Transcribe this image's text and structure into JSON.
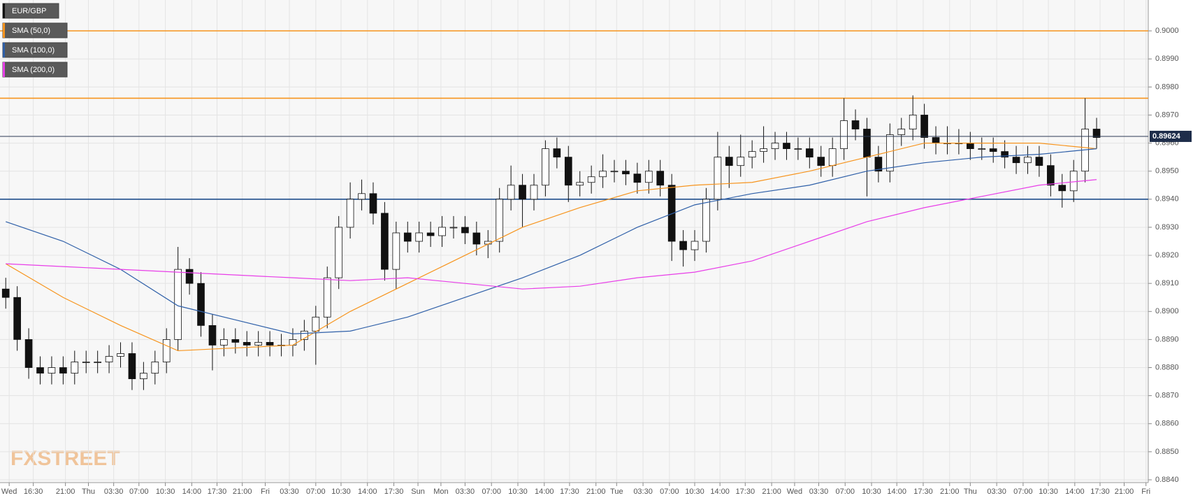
{
  "logo": "FXSTREET",
  "chart_data": {
    "type": "candlestick",
    "name": "EUR/GBP",
    "x": [
      0.5,
      1.5,
      2.5,
      3.5,
      4.5,
      5.5,
      6.5,
      7.5,
      8.5,
      9.5,
      10.5,
      11.5,
      12.5,
      13.5,
      14.5,
      15.5,
      16.5,
      17.5,
      18.5,
      19.5,
      20.5,
      21.5,
      22.5,
      23.5,
      24.5,
      25.5,
      26.5,
      27.5,
      28.5,
      29.5,
      30.5,
      31.5,
      32.5,
      33.5,
      34.5,
      35.5,
      36.5,
      37.5,
      38.5,
      39.5,
      40.5,
      41.5,
      42.5,
      43.5,
      44.5,
      45.5,
      46.5,
      47.5,
      48.5,
      49.5,
      50.5,
      51.5,
      52.5,
      53.5,
      54.5,
      55.5,
      56.5,
      57.5,
      58.5,
      59.5,
      60.5,
      61.5,
      62.5,
      63.5,
      64.5,
      65.5,
      66.5,
      67.5,
      68.5,
      69.5,
      70.5,
      71.5,
      72.5,
      73.5,
      74.5,
      75.5,
      76.5,
      77.5,
      78.5,
      79.5,
      80.5,
      81.5,
      82.5,
      83.5,
      84.5,
      85.5,
      86.5,
      87.5,
      88.5,
      89.5,
      90.5,
      91.5,
      92.5,
      93.5,
      94.5,
      95.5
    ],
    "open": [
      0.8908,
      0.8905,
      0.889,
      0.888,
      0.8878,
      0.888,
      0.8878,
      0.8882,
      0.8882,
      0.8882,
      0.8884,
      0.8885,
      0.8876,
      0.8878,
      0.8882,
      0.889,
      0.8915,
      0.891,
      0.8895,
      0.8888,
      0.889,
      0.8889,
      0.8888,
      0.8889,
      0.8888,
      0.8888,
      0.889,
      0.8893,
      0.8898,
      0.8912,
      0.893,
      0.894,
      0.8942,
      0.8935,
      0.8915,
      0.8928,
      0.8925,
      0.8928,
      0.8927,
      0.893,
      0.893,
      0.8928,
      0.8924,
      0.8925,
      0.894,
      0.8945,
      0.894,
      0.8945,
      0.8958,
      0.8955,
      0.8945,
      0.8946,
      0.8948,
      0.895,
      0.895,
      0.8949,
      0.8946,
      0.895,
      0.8945,
      0.8925,
      0.8922,
      0.8925,
      0.894,
      0.8955,
      0.8952,
      0.8955,
      0.8957,
      0.8958,
      0.896,
      0.8958,
      0.8958,
      0.8955,
      0.8952,
      0.8958,
      0.8968,
      0.8965,
      0.8955,
      0.895,
      0.8963,
      0.8965,
      0.897,
      0.8962,
      0.896,
      0.896,
      0.896,
      0.8958,
      0.8958,
      0.8957,
      0.8955,
      0.8953,
      0.8955,
      0.8952,
      0.8945,
      0.8943,
      0.895,
      0.8965
    ],
    "high": [
      0.8912,
      0.8909,
      0.8894,
      0.8884,
      0.8884,
      0.8884,
      0.8886,
      0.8886,
      0.8886,
      0.8888,
      0.8889,
      0.8889,
      0.8882,
      0.8886,
      0.8894,
      0.8923,
      0.8919,
      0.8914,
      0.8899,
      0.8894,
      0.8894,
      0.8893,
      0.8893,
      0.8893,
      0.8892,
      0.8894,
      0.8897,
      0.8902,
      0.8916,
      0.8934,
      0.8946,
      0.8947,
      0.8946,
      0.8939,
      0.8932,
      0.8932,
      0.8932,
      0.8932,
      0.8934,
      0.8934,
      0.8934,
      0.8932,
      0.8929,
      0.8944,
      0.8952,
      0.8949,
      0.8949,
      0.8961,
      0.8962,
      0.8959,
      0.895,
      0.8952,
      0.8956,
      0.8954,
      0.8954,
      0.8953,
      0.8954,
      0.8954,
      0.8949,
      0.8929,
      0.8929,
      0.8944,
      0.8964,
      0.8959,
      0.8963,
      0.8961,
      0.8966,
      0.8964,
      0.8964,
      0.8962,
      0.8962,
      0.8959,
      0.8962,
      0.8976,
      0.8972,
      0.8969,
      0.8959,
      0.8967,
      0.8969,
      0.8977,
      0.8974,
      0.8966,
      0.8966,
      0.8965,
      0.8964,
      0.8962,
      0.8962,
      0.8961,
      0.8959,
      0.8959,
      0.8959,
      0.8956,
      0.8949,
      0.8954,
      0.8976,
      0.8969
    ],
    "low": [
      0.8901,
      0.8886,
      0.8876,
      0.8874,
      0.8874,
      0.8874,
      0.8874,
      0.8878,
      0.8878,
      0.8878,
      0.888,
      0.8872,
      0.8872,
      0.8874,
      0.8878,
      0.8886,
      0.8906,
      0.8891,
      0.8879,
      0.8884,
      0.8885,
      0.8884,
      0.8884,
      0.8884,
      0.8884,
      0.8884,
      0.8886,
      0.8881,
      0.8894,
      0.8908,
      0.8926,
      0.8936,
      0.8931,
      0.8911,
      0.8908,
      0.8921,
      0.8921,
      0.8923,
      0.8923,
      0.8926,
      0.8924,
      0.892,
      0.8919,
      0.8921,
      0.8936,
      0.893,
      0.8936,
      0.8941,
      0.8951,
      0.8939,
      0.8941,
      0.8942,
      0.8944,
      0.8946,
      0.8945,
      0.8942,
      0.8942,
      0.8941,
      0.8918,
      0.8916,
      0.8918,
      0.8921,
      0.8936,
      0.8944,
      0.8948,
      0.8951,
      0.8953,
      0.8954,
      0.8954,
      0.8954,
      0.8951,
      0.8948,
      0.8948,
      0.8954,
      0.8961,
      0.8941,
      0.8946,
      0.8946,
      0.8959,
      0.8961,
      0.8958,
      0.8956,
      0.8956,
      0.8956,
      0.8954,
      0.8954,
      0.8953,
      0.8951,
      0.8949,
      0.8949,
      0.8948,
      0.8941,
      0.8937,
      0.8939,
      0.8946,
      0.8958
    ],
    "close": [
      0.8905,
      0.889,
      0.888,
      0.8878,
      0.888,
      0.8878,
      0.8882,
      0.8882,
      0.8882,
      0.8884,
      0.8885,
      0.8876,
      0.8878,
      0.8882,
      0.889,
      0.8915,
      0.891,
      0.8895,
      0.8888,
      0.889,
      0.8889,
      0.8888,
      0.8889,
      0.8888,
      0.8888,
      0.889,
      0.8893,
      0.8898,
      0.8912,
      0.893,
      0.894,
      0.8942,
      0.8935,
      0.8915,
      0.8928,
      0.8925,
      0.8928,
      0.8927,
      0.893,
      0.893,
      0.8928,
      0.8924,
      0.8925,
      0.894,
      0.8945,
      0.894,
      0.8945,
      0.8958,
      0.8955,
      0.8945,
      0.8946,
      0.8948,
      0.895,
      0.895,
      0.8949,
      0.8946,
      0.895,
      0.8945,
      0.8925,
      0.8922,
      0.8925,
      0.894,
      0.8955,
      0.8952,
      0.8955,
      0.8957,
      0.8958,
      0.896,
      0.8958,
      0.8958,
      0.8955,
      0.8952,
      0.8958,
      0.8968,
      0.8965,
      0.8955,
      0.895,
      0.8963,
      0.8965,
      0.897,
      0.8962,
      0.896,
      0.896,
      0.896,
      0.8958,
      0.8958,
      0.8957,
      0.8955,
      0.8953,
      0.8955,
      0.8952,
      0.8945,
      0.8943,
      0.895,
      0.8965,
      0.8962
    ],
    "series": [
      {
        "name": "SMA (50,0)",
        "color": "#f7941d",
        "x": [
          0.5,
          5.5,
          10.5,
          15.5,
          20.5,
          25.5,
          30.5,
          35.5,
          40.5,
          45.5,
          50.5,
          55.5,
          60.5,
          65.5,
          70.5,
          75.5,
          80.5,
          85.5,
          90.5,
          95.5
        ],
        "values": [
          0.8917,
          0.8905,
          0.8895,
          0.8886,
          0.8887,
          0.8888,
          0.89,
          0.891,
          0.892,
          0.893,
          0.8937,
          0.8943,
          0.8945,
          0.8946,
          0.895,
          0.8955,
          0.896,
          0.896,
          0.896,
          0.8958
        ]
      },
      {
        "name": "SMA (100,0)",
        "color": "#2e5fa8",
        "x": [
          0.5,
          5.5,
          10.5,
          15.5,
          20.5,
          25.5,
          30.5,
          35.5,
          40.5,
          45.5,
          50.5,
          55.5,
          60.5,
          65.5,
          70.5,
          75.5,
          80.5,
          85.5,
          90.5,
          95.5
        ],
        "values": [
          0.8932,
          0.8925,
          0.8915,
          0.8902,
          0.8897,
          0.8892,
          0.8893,
          0.8898,
          0.8905,
          0.8912,
          0.892,
          0.893,
          0.8938,
          0.8942,
          0.8945,
          0.895,
          0.8953,
          0.8955,
          0.8956,
          0.8958
        ]
      },
      {
        "name": "SMA (200,0)",
        "color": "#e83ee8",
        "x": [
          0.5,
          5.5,
          10.5,
          15.5,
          20.5,
          25.5,
          30.5,
          35.5,
          40.5,
          45.5,
          50.5,
          55.5,
          60.5,
          65.5,
          70.5,
          75.5,
          80.5,
          85.5,
          90.5,
          95.5
        ],
        "values": [
          0.8917,
          0.8916,
          0.8915,
          0.8914,
          0.8913,
          0.8912,
          0.8911,
          0.8912,
          0.891,
          0.8908,
          0.8909,
          0.8912,
          0.8914,
          0.8918,
          0.8925,
          0.8932,
          0.8937,
          0.8941,
          0.8945,
          0.8947
        ]
      }
    ],
    "hlines": [
      {
        "value": 0.9,
        "color": "#f7941d"
      },
      {
        "value": 0.8976,
        "color": "#f7941d"
      },
      {
        "value": 0.894,
        "color": "#1f4e8c"
      }
    ],
    "last_price": 0.89624,
    "xlim": [
      0,
      100
    ],
    "ylim": [
      0.8839,
      0.9011
    ],
    "yticks": [
      {
        "value": 0.884,
        "label": "0.8840"
      },
      {
        "value": 0.885,
        "label": "0.8850"
      },
      {
        "value": 0.886,
        "label": "0.8860"
      },
      {
        "value": 0.887,
        "label": "0.8870"
      },
      {
        "value": 0.888,
        "label": "0.8880"
      },
      {
        "value": 0.889,
        "label": "0.8890"
      },
      {
        "value": 0.89,
        "label": "0.8900"
      },
      {
        "value": 0.891,
        "label": "0.8910"
      },
      {
        "value": 0.892,
        "label": "0.8920"
      },
      {
        "value": 0.893,
        "label": "0.8930"
      },
      {
        "value": 0.894,
        "label": "0.8940"
      },
      {
        "value": 0.895,
        "label": "0.8950"
      },
      {
        "value": 0.896,
        "label": "0.8960"
      },
      {
        "value": 0.897,
        "label": "0.8970"
      },
      {
        "value": 0.898,
        "label": "0.8980"
      },
      {
        "value": 0.899,
        "label": "0.8990"
      },
      {
        "value": 0.9,
        "label": "0.9000"
      }
    ],
    "xticks": [
      {
        "value": 0.8,
        "label": "Wed"
      },
      {
        "value": 2.9,
        "label": "16:30"
      },
      {
        "value": 5.7,
        "label": "21:00"
      },
      {
        "value": 7.7,
        "label": "Thu"
      },
      {
        "value": 9.9,
        "label": "03:30"
      },
      {
        "value": 12.1,
        "label": "07:00"
      },
      {
        "value": 14.4,
        "label": "10:30"
      },
      {
        "value": 16.7,
        "label": "14:00"
      },
      {
        "value": 18.9,
        "label": "17:30"
      },
      {
        "value": 21.1,
        "label": "21:00"
      },
      {
        "value": 23.1,
        "label": "Fri"
      },
      {
        "value": 25.2,
        "label": "03:30"
      },
      {
        "value": 27.5,
        "label": "07:00"
      },
      {
        "value": 29.7,
        "label": "10:30"
      },
      {
        "value": 32.0,
        "label": "14:00"
      },
      {
        "value": 34.3,
        "label": "17:30"
      },
      {
        "value": 36.4,
        "label": "Sun"
      },
      {
        "value": 38.4,
        "label": "Mon"
      },
      {
        "value": 40.5,
        "label": "03:30"
      },
      {
        "value": 42.8,
        "label": "07:00"
      },
      {
        "value": 45.1,
        "label": "10:30"
      },
      {
        "value": 47.4,
        "label": "14:00"
      },
      {
        "value": 49.6,
        "label": "17:30"
      },
      {
        "value": 51.9,
        "label": "21:00"
      },
      {
        "value": 53.7,
        "label": "Tue"
      },
      {
        "value": 56.0,
        "label": "03:30"
      },
      {
        "value": 58.3,
        "label": "07:00"
      },
      {
        "value": 60.5,
        "label": "10:30"
      },
      {
        "value": 62.7,
        "label": "14:00"
      },
      {
        "value": 64.9,
        "label": "17:30"
      },
      {
        "value": 67.2,
        "label": "21:00"
      },
      {
        "value": 69.2,
        "label": "Wed"
      },
      {
        "value": 71.3,
        "label": "03:30"
      },
      {
        "value": 73.6,
        "label": "07:00"
      },
      {
        "value": 75.9,
        "label": "10:30"
      },
      {
        "value": 78.1,
        "label": "14:00"
      },
      {
        "value": 80.4,
        "label": "17:30"
      },
      {
        "value": 82.7,
        "label": "21:00"
      },
      {
        "value": 84.5,
        "label": "Thu"
      },
      {
        "value": 86.8,
        "label": "03:30"
      },
      {
        "value": 89.1,
        "label": "07:00"
      },
      {
        "value": 91.3,
        "label": "10:30"
      },
      {
        "value": 93.6,
        "label": "14:00"
      },
      {
        "value": 95.8,
        "label": "17:30"
      },
      {
        "value": 97.9,
        "label": "21:00"
      },
      {
        "value": 99.8,
        "label": "Fri"
      }
    ],
    "grid": true
  }
}
